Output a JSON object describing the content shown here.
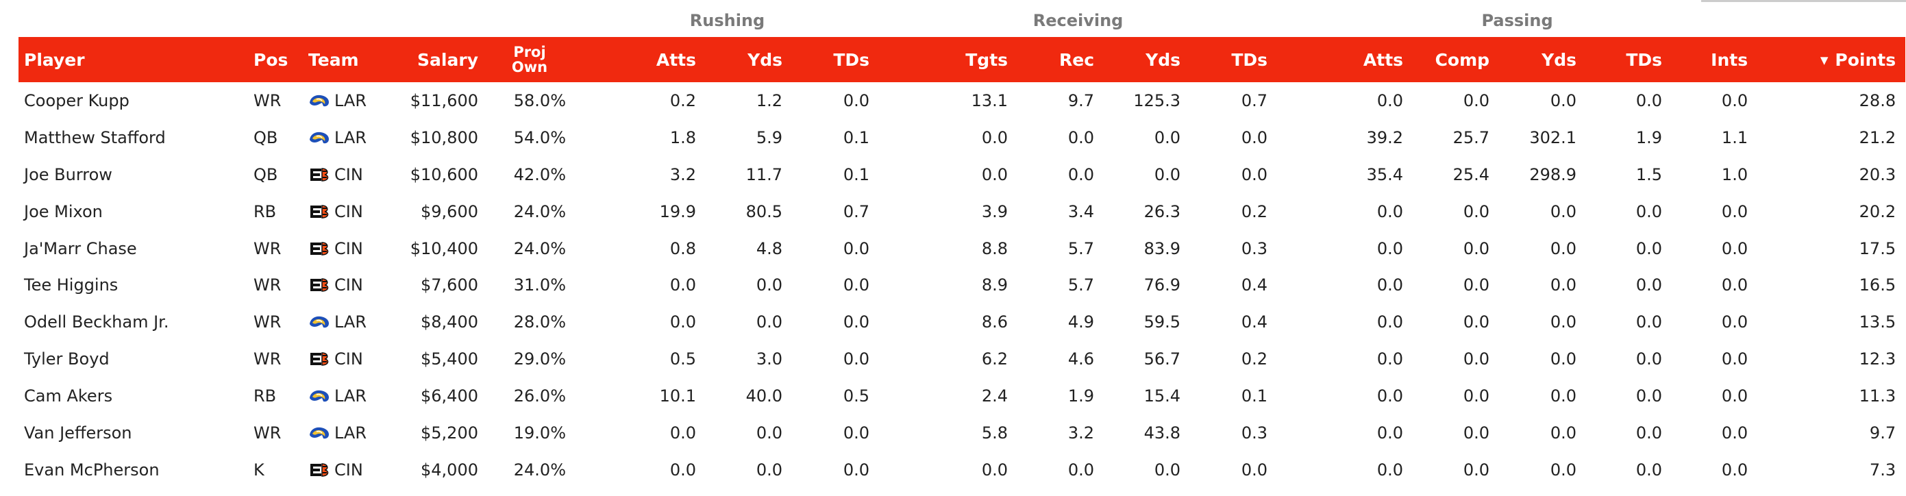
{
  "groups": {
    "rushing": "Rushing",
    "receiving": "Receiving",
    "passing": "Passing"
  },
  "columns": {
    "player": "Player",
    "pos": "Pos",
    "team": "Team",
    "salary": "Salary",
    "own_line1": "Proj",
    "own_line2": "Own",
    "rush_atts": "Atts",
    "rush_yds": "Yds",
    "rush_tds": "TDs",
    "rec_tgts": "Tgts",
    "rec_rec": "Rec",
    "rec_yds": "Yds",
    "rec_tds": "TDs",
    "pass_atts": "Atts",
    "pass_comp": "Comp",
    "pass_yds": "Yds",
    "pass_tds": "TDs",
    "pass_ints": "Ints",
    "points": "Points",
    "sort_icon": "sort-descending-icon"
  },
  "colors": {
    "header_bg": "#f0290f",
    "header_text": "#ffffff",
    "group_text": "#7a7a7a"
  },
  "rows": [
    {
      "player": "Cooper Kupp",
      "pos": "WR",
      "team": "LAR",
      "logo": "rams-logo-icon",
      "salary": "$11,600",
      "own": "58.0%",
      "rush_atts": "0.2",
      "rush_yds": "1.2",
      "rush_tds": "0.0",
      "rec_tgts": "13.1",
      "rec_rec": "9.7",
      "rec_yds": "125.3",
      "rec_tds": "0.7",
      "pass_atts": "0.0",
      "pass_comp": "0.0",
      "pass_yds": "0.0",
      "pass_tds": "0.0",
      "pass_ints": "0.0",
      "points": "28.8"
    },
    {
      "player": "Matthew Stafford",
      "pos": "QB",
      "team": "LAR",
      "logo": "rams-logo-icon",
      "salary": "$10,800",
      "own": "54.0%",
      "rush_atts": "1.8",
      "rush_yds": "5.9",
      "rush_tds": "0.1",
      "rec_tgts": "0.0",
      "rec_rec": "0.0",
      "rec_yds": "0.0",
      "rec_tds": "0.0",
      "pass_atts": "39.2",
      "pass_comp": "25.7",
      "pass_yds": "302.1",
      "pass_tds": "1.9",
      "pass_ints": "1.1",
      "points": "21.2"
    },
    {
      "player": "Joe Burrow",
      "pos": "QB",
      "team": "CIN",
      "logo": "bengals-logo-icon",
      "salary": "$10,600",
      "own": "42.0%",
      "rush_atts": "3.2",
      "rush_yds": "11.7",
      "rush_tds": "0.1",
      "rec_tgts": "0.0",
      "rec_rec": "0.0",
      "rec_yds": "0.0",
      "rec_tds": "0.0",
      "pass_atts": "35.4",
      "pass_comp": "25.4",
      "pass_yds": "298.9",
      "pass_tds": "1.5",
      "pass_ints": "1.0",
      "points": "20.3"
    },
    {
      "player": "Joe Mixon",
      "pos": "RB",
      "team": "CIN",
      "logo": "bengals-logo-icon",
      "salary": "$9,600",
      "own": "24.0%",
      "rush_atts": "19.9",
      "rush_yds": "80.5",
      "rush_tds": "0.7",
      "rec_tgts": "3.9",
      "rec_rec": "3.4",
      "rec_yds": "26.3",
      "rec_tds": "0.2",
      "pass_atts": "0.0",
      "pass_comp": "0.0",
      "pass_yds": "0.0",
      "pass_tds": "0.0",
      "pass_ints": "0.0",
      "points": "20.2"
    },
    {
      "player": "Ja'Marr Chase",
      "pos": "WR",
      "team": "CIN",
      "logo": "bengals-logo-icon",
      "salary": "$10,400",
      "own": "24.0%",
      "rush_atts": "0.8",
      "rush_yds": "4.8",
      "rush_tds": "0.0",
      "rec_tgts": "8.8",
      "rec_rec": "5.7",
      "rec_yds": "83.9",
      "rec_tds": "0.3",
      "pass_atts": "0.0",
      "pass_comp": "0.0",
      "pass_yds": "0.0",
      "pass_tds": "0.0",
      "pass_ints": "0.0",
      "points": "17.5"
    },
    {
      "player": "Tee Higgins",
      "pos": "WR",
      "team": "CIN",
      "logo": "bengals-logo-icon",
      "salary": "$7,600",
      "own": "31.0%",
      "rush_atts": "0.0",
      "rush_yds": "0.0",
      "rush_tds": "0.0",
      "rec_tgts": "8.9",
      "rec_rec": "5.7",
      "rec_yds": "76.9",
      "rec_tds": "0.4",
      "pass_atts": "0.0",
      "pass_comp": "0.0",
      "pass_yds": "0.0",
      "pass_tds": "0.0",
      "pass_ints": "0.0",
      "points": "16.5"
    },
    {
      "player": "Odell Beckham Jr.",
      "pos": "WR",
      "team": "LAR",
      "logo": "rams-logo-icon",
      "salary": "$8,400",
      "own": "28.0%",
      "rush_atts": "0.0",
      "rush_yds": "0.0",
      "rush_tds": "0.0",
      "rec_tgts": "8.6",
      "rec_rec": "4.9",
      "rec_yds": "59.5",
      "rec_tds": "0.4",
      "pass_atts": "0.0",
      "pass_comp": "0.0",
      "pass_yds": "0.0",
      "pass_tds": "0.0",
      "pass_ints": "0.0",
      "points": "13.5"
    },
    {
      "player": "Tyler Boyd",
      "pos": "WR",
      "team": "CIN",
      "logo": "bengals-logo-icon",
      "salary": "$5,400",
      "own": "29.0%",
      "rush_atts": "0.5",
      "rush_yds": "3.0",
      "rush_tds": "0.0",
      "rec_tgts": "6.2",
      "rec_rec": "4.6",
      "rec_yds": "56.7",
      "rec_tds": "0.2",
      "pass_atts": "0.0",
      "pass_comp": "0.0",
      "pass_yds": "0.0",
      "pass_tds": "0.0",
      "pass_ints": "0.0",
      "points": "12.3"
    },
    {
      "player": "Cam Akers",
      "pos": "RB",
      "team": "LAR",
      "logo": "rams-logo-icon",
      "salary": "$6,400",
      "own": "26.0%",
      "rush_atts": "10.1",
      "rush_yds": "40.0",
      "rush_tds": "0.5",
      "rec_tgts": "2.4",
      "rec_rec": "1.9",
      "rec_yds": "15.4",
      "rec_tds": "0.1",
      "pass_atts": "0.0",
      "pass_comp": "0.0",
      "pass_yds": "0.0",
      "pass_tds": "0.0",
      "pass_ints": "0.0",
      "points": "11.3"
    },
    {
      "player": "Van Jefferson",
      "pos": "WR",
      "team": "LAR",
      "logo": "rams-logo-icon",
      "salary": "$5,200",
      "own": "19.0%",
      "rush_atts": "0.0",
      "rush_yds": "0.0",
      "rush_tds": "0.0",
      "rec_tgts": "5.8",
      "rec_rec": "3.2",
      "rec_yds": "43.8",
      "rec_tds": "0.3",
      "pass_atts": "0.0",
      "pass_comp": "0.0",
      "pass_yds": "0.0",
      "pass_tds": "0.0",
      "pass_ints": "0.0",
      "points": "9.7"
    },
    {
      "player": "Evan McPherson",
      "pos": "K",
      "team": "CIN",
      "logo": "bengals-logo-icon",
      "salary": "$4,000",
      "own": "24.0%",
      "rush_atts": "0.0",
      "rush_yds": "0.0",
      "rush_tds": "0.0",
      "rec_tgts": "0.0",
      "rec_rec": "0.0",
      "rec_yds": "0.0",
      "rec_tds": "0.0",
      "pass_atts": "0.0",
      "pass_comp": "0.0",
      "pass_yds": "0.0",
      "pass_tds": "0.0",
      "pass_ints": "0.0",
      "points": "7.3"
    }
  ]
}
